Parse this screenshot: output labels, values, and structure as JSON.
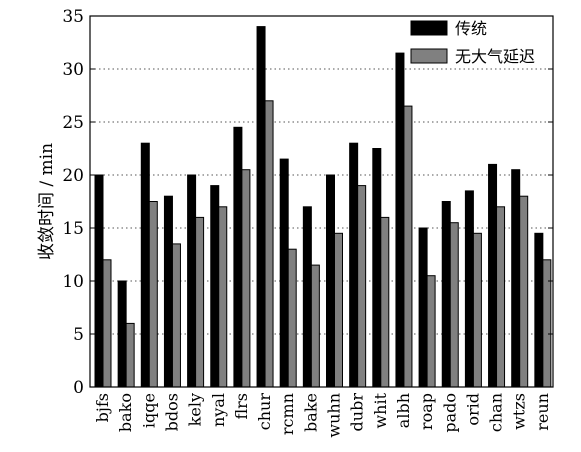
{
  "chart_data": {
    "type": "bar",
    "categories": [
      "bjfs",
      "bako",
      "iqqe",
      "bdos",
      "kely",
      "nyal",
      "flrs",
      "chur",
      "rcmn",
      "bake",
      "wuhn",
      "dubr",
      "whit",
      "albh",
      "roap",
      "pado",
      "orid",
      "chan",
      "wtzs",
      "reun"
    ],
    "series": [
      {
        "name": "传统",
        "color": "#000000",
        "values": [
          20,
          10,
          23,
          18,
          20,
          19,
          24.5,
          34,
          21.5,
          17,
          20,
          23,
          22.5,
          31.5,
          15,
          17.5,
          18.5,
          21,
          20.5,
          14.5
        ]
      },
      {
        "name": "无大气延迟",
        "color": "#808080",
        "values": [
          12,
          6,
          17.5,
          13.5,
          16,
          17,
          20.5,
          27,
          13,
          11.5,
          14.5,
          19,
          16,
          26.5,
          10.5,
          15.5,
          14.5,
          17,
          18,
          12
        ]
      }
    ],
    "title": "",
    "xlabel": "",
    "ylabel": "收敛时间 / min",
    "ylim": [
      0,
      35
    ],
    "yticks": [
      0,
      5,
      10,
      15,
      20,
      25,
      30,
      35
    ],
    "grid": "dotted horizontal",
    "legend_position": "top-right"
  }
}
